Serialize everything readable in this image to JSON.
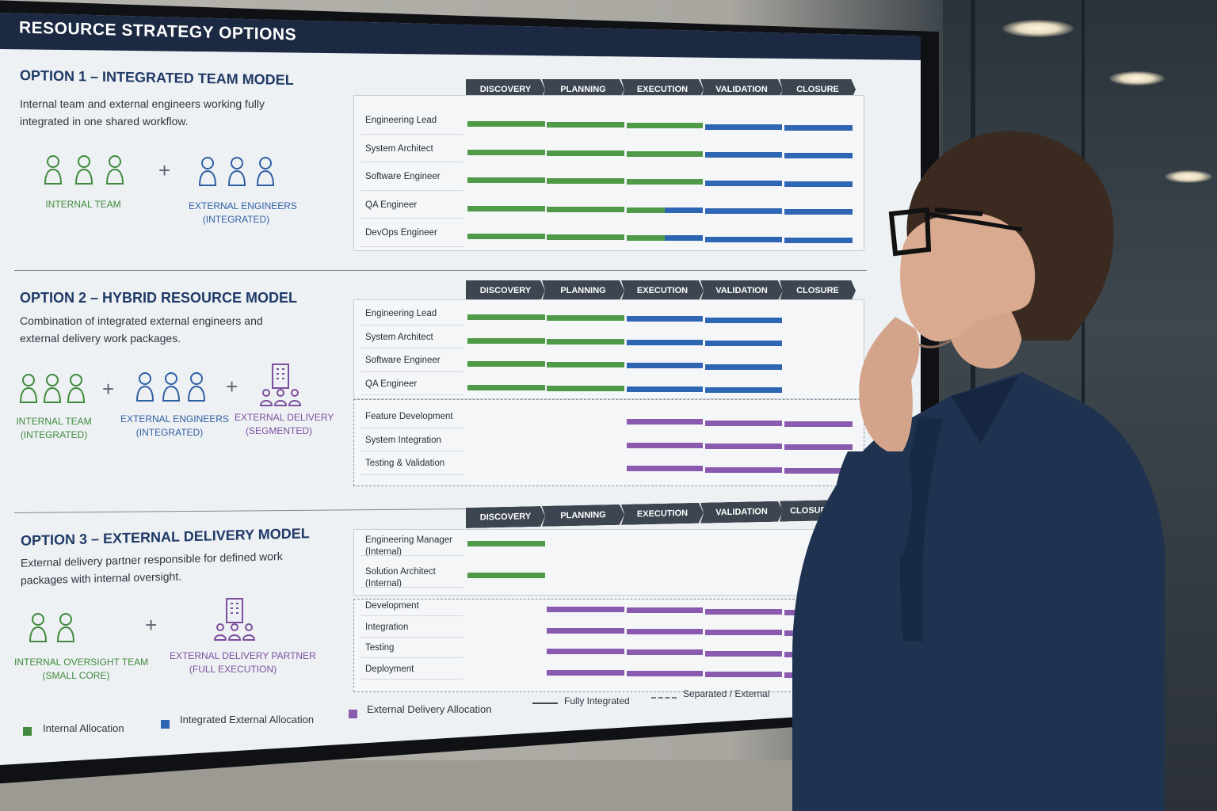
{
  "screen": {
    "title": "RESOURCE STRATEGY OPTIONS"
  },
  "colors": {
    "internal": "#4e9a46",
    "integrated": "#2f66b3",
    "external": "#8a5aaf",
    "header": "#1c2942"
  },
  "phases": [
    "DISCOVERY",
    "PLANNING",
    "EXECUTION",
    "VALIDATION",
    "CLOSURE"
  ],
  "option1": {
    "title": "OPTION 1 – INTEGRATED TEAM MODEL",
    "description": "Internal team and external engineers working fully integrated in one shared workflow.",
    "groups": [
      {
        "label_line1": "INTERNAL TEAM",
        "label_line2": "",
        "icon": "person-icon"
      },
      {
        "label_line1": "EXTERNAL ENGINEERS",
        "label_line2": "(INTEGRATED)",
        "icon": "person-icon"
      }
    ],
    "roles": [
      {
        "name": "Engineering Lead",
        "alloc": [
          "internal",
          "internal",
          "internal",
          "integrated",
          "integrated"
        ]
      },
      {
        "name": "System Architect",
        "alloc": [
          "internal",
          "internal",
          "internal",
          "integrated",
          "integrated"
        ]
      },
      {
        "name": "Software Engineer",
        "alloc": [
          "internal",
          "internal",
          "internal",
          "integrated",
          "integrated"
        ]
      },
      {
        "name": "QA Engineer",
        "alloc": [
          "internal",
          "internal",
          "internal-integrated",
          "integrated",
          "integrated"
        ]
      },
      {
        "name": "DevOps Engineer",
        "alloc": [
          "internal",
          "internal",
          "internal-integrated",
          "integrated",
          "integrated"
        ]
      }
    ]
  },
  "option2": {
    "title": "OPTION 2 – HYBRID RESOURCE MODEL",
    "description": "Combination of integrated external engineers and external delivery work packages.",
    "groups": [
      {
        "label_line1": "INTERNAL TEAM",
        "label_line2": "(INTEGRATED)",
        "icon": "person-icon"
      },
      {
        "label_line1": "EXTERNAL ENGINEERS",
        "label_line2": "(INTEGRATED)",
        "icon": "person-icon"
      },
      {
        "label_line1": "EXTERNAL DELIVERY",
        "label_line2": "(SEGMENTED)",
        "icon": "building-team-icon"
      }
    ],
    "roles": [
      {
        "name": "Engineering Lead",
        "alloc": [
          "internal",
          "internal",
          "integrated",
          "integrated",
          ""
        ]
      },
      {
        "name": "System Architect",
        "alloc": [
          "internal",
          "internal",
          "integrated",
          "integrated",
          ""
        ]
      },
      {
        "name": "Software Engineer",
        "alloc": [
          "internal",
          "internal",
          "integrated",
          "integrated",
          ""
        ]
      },
      {
        "name": "QA Engineer",
        "alloc": [
          "internal",
          "internal",
          "integrated",
          "integrated",
          ""
        ]
      }
    ],
    "packages": [
      {
        "name": "Feature Development",
        "alloc": [
          "",
          "",
          "external",
          "external",
          "external"
        ]
      },
      {
        "name": "System Integration",
        "alloc": [
          "",
          "",
          "external",
          "external",
          "external"
        ]
      },
      {
        "name": "Testing & Validation",
        "alloc": [
          "",
          "",
          "external",
          "external",
          "external"
        ]
      }
    ]
  },
  "option3": {
    "title": "OPTION 3 – EXTERNAL DELIVERY MODEL",
    "description": "External delivery partner responsible for defined work packages with internal oversight.",
    "groups": [
      {
        "label_line1": "INTERNAL OVERSIGHT TEAM",
        "label_line2": "(SMALL CORE)",
        "icon": "person-icon"
      },
      {
        "label_line1": "EXTERNAL DELIVERY PARTNER",
        "label_line2": "(FULL EXECUTION)",
        "icon": "building-team-icon"
      }
    ],
    "roles": [
      {
        "name": "Engineering Manager",
        "name2": "(Internal)",
        "alloc": [
          "internal",
          "",
          "",
          "",
          ""
        ]
      },
      {
        "name": "Solution Architect",
        "name2": "(Internal)",
        "alloc": [
          "internal",
          "",
          "",
          "",
          ""
        ]
      }
    ],
    "packages": [
      {
        "name": "Development",
        "alloc": [
          "",
          "external",
          "external",
          "external",
          "external"
        ]
      },
      {
        "name": "Integration",
        "alloc": [
          "",
          "external",
          "external",
          "external",
          "external"
        ]
      },
      {
        "name": "Testing",
        "alloc": [
          "",
          "external",
          "external",
          "external",
          "external"
        ]
      },
      {
        "name": "Deployment",
        "alloc": [
          "",
          "external",
          "external",
          "external",
          "external"
        ]
      }
    ]
  },
  "legend": {
    "internal": "Internal Allocation",
    "integrated": "Integrated External Allocation",
    "external": "External Delivery Allocation",
    "solid": "Fully Integrated",
    "dashed": "Separated / External"
  }
}
